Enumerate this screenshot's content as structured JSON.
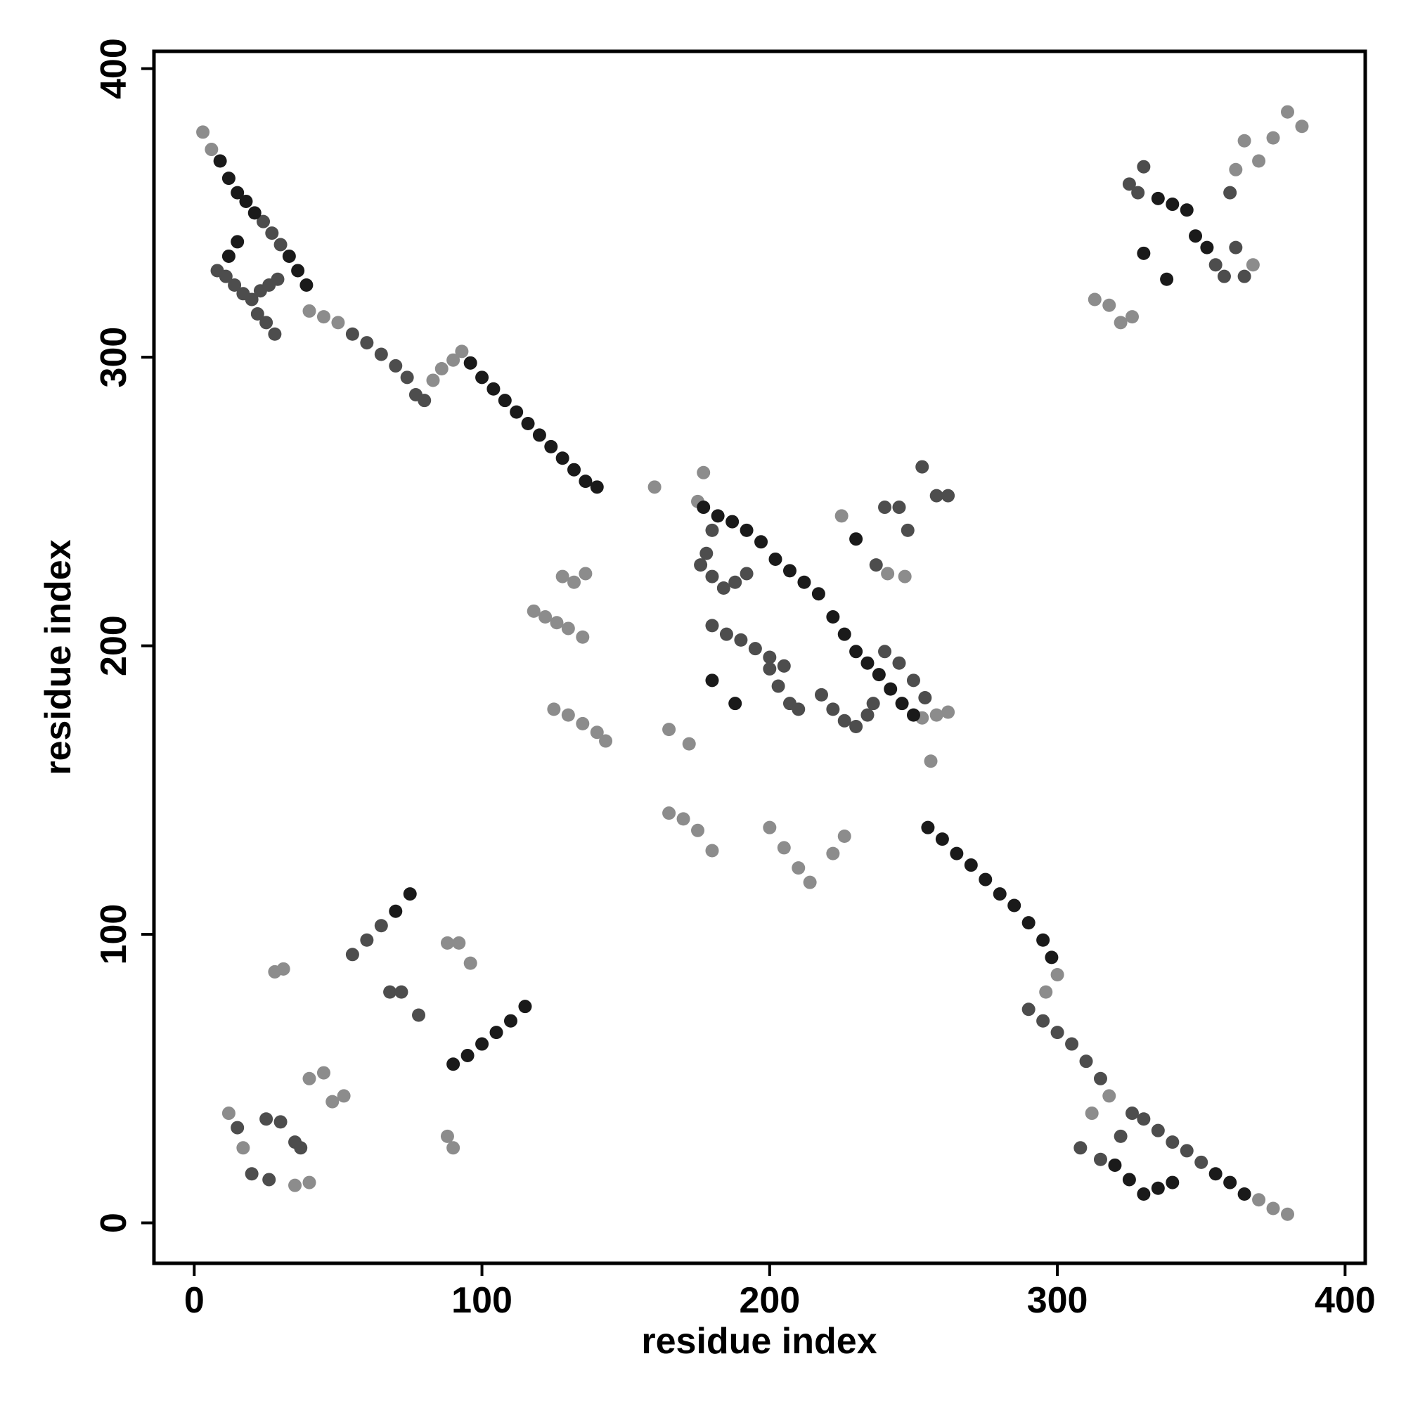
{
  "chart_data": {
    "type": "scatter",
    "x_label": "residue index",
    "y_label": "residue index",
    "xlim": [
      -14,
      407
    ],
    "ylim": [
      -14,
      406
    ],
    "xticks": [
      0,
      100,
      200,
      300,
      400
    ],
    "yticks": [
      0,
      100,
      200,
      300,
      400
    ],
    "series": [
      {
        "color": "#8c8c8c",
        "x": [
          160,
          177,
          175,
          128,
          132,
          136,
          118,
          122,
          126,
          130,
          135,
          125,
          130,
          135,
          140,
          143,
          165,
          172,
          165,
          170,
          175,
          180,
          200,
          205,
          210,
          214,
          222,
          226,
          253,
          258,
          262,
          256,
          225,
          241,
          247,
          28,
          31,
          40,
          45,
          48,
          52,
          88,
          92,
          96,
          88,
          90,
          12,
          17,
          35,
          40,
          313,
          318,
          322,
          326,
          365,
          370,
          375,
          380,
          385,
          362,
          368,
          3,
          6,
          40,
          45,
          50,
          83,
          86,
          90,
          93,
          296,
          300,
          312,
          318,
          370,
          375,
          380
        ],
        "values": [
          255,
          260,
          250,
          224,
          222,
          225,
          212,
          210,
          208,
          206,
          203,
          178,
          176,
          173,
          170,
          167,
          171,
          166,
          142,
          140,
          136,
          129,
          137,
          130,
          123,
          118,
          128,
          134,
          175,
          176,
          177,
          160,
          245,
          225,
          224,
          87,
          88,
          50,
          52,
          42,
          44,
          97,
          97,
          90,
          30,
          26,
          38,
          26,
          13,
          14,
          320,
          318,
          312,
          314,
          375,
          368,
          376,
          385,
          380,
          365,
          332,
          378,
          372,
          316,
          314,
          312,
          292,
          296,
          299,
          302,
          80,
          86,
          38,
          44,
          8,
          5,
          3
        ]
      },
      {
        "color": "#4d4d4d",
        "x": [
          8,
          11,
          14,
          17,
          20,
          23,
          26,
          29,
          25,
          28,
          22,
          180,
          178,
          176,
          180,
          184,
          188,
          192,
          180,
          185,
          190,
          195,
          200,
          205,
          200,
          203,
          207,
          210,
          218,
          222,
          226,
          230,
          234,
          236,
          240,
          245,
          250,
          254,
          237,
          240,
          245,
          248,
          253,
          258,
          262,
          15,
          25,
          30,
          35,
          37,
          20,
          26,
          55,
          60,
          65,
          68,
          72,
          78,
          325,
          330,
          328,
          355,
          358,
          362,
          365,
          360,
          308,
          315,
          322,
          326,
          330,
          335,
          340,
          345,
          350,
          290,
          295,
          300,
          305,
          24,
          27,
          30,
          55,
          60,
          65,
          70,
          74,
          77,
          80,
          310,
          315
        ],
        "values": [
          330,
          328,
          325,
          322,
          320,
          323,
          325,
          327,
          312,
          308,
          315,
          240,
          232,
          228,
          224,
          220,
          222,
          225,
          207,
          204,
          202,
          199,
          196,
          193,
          192,
          186,
          180,
          178,
          183,
          178,
          174,
          172,
          176,
          180,
          198,
          194,
          188,
          182,
          228,
          248,
          248,
          240,
          262,
          252,
          252,
          33,
          36,
          35,
          28,
          26,
          17,
          15,
          93,
          98,
          103,
          80,
          80,
          72,
          360,
          366,
          357,
          332,
          328,
          338,
          328,
          357,
          26,
          22,
          30,
          38,
          36,
          32,
          28,
          25,
          21,
          74,
          70,
          66,
          62,
          347,
          343,
          339,
          308,
          305,
          301,
          297,
          293,
          287,
          285,
          56,
          50
        ]
      },
      {
        "color": "#1a1a1a",
        "x": [
          9,
          12,
          15,
          18,
          21,
          33,
          36,
          39,
          12,
          15,
          96,
          100,
          104,
          108,
          112,
          116,
          120,
          124,
          128,
          132,
          136,
          140,
          177,
          182,
          187,
          192,
          197,
          202,
          207,
          212,
          217,
          222,
          226,
          230,
          234,
          238,
          242,
          246,
          250,
          180,
          188,
          230,
          70,
          75,
          90,
          95,
          100,
          105,
          110,
          115,
          255,
          260,
          265,
          270,
          275,
          280,
          285,
          290,
          295,
          298,
          320,
          325,
          330,
          335,
          340,
          355,
          360,
          365,
          335,
          340,
          345,
          348,
          352,
          330,
          338
        ],
        "values": [
          368,
          362,
          357,
          354,
          350,
          335,
          330,
          325,
          335,
          340,
          298,
          293,
          289,
          285,
          281,
          277,
          273,
          269,
          265,
          261,
          257,
          255,
          248,
          245,
          243,
          240,
          236,
          230,
          226,
          222,
          218,
          210,
          204,
          198,
          194,
          190,
          185,
          180,
          176,
          188,
          180,
          237,
          108,
          114,
          55,
          58,
          62,
          66,
          70,
          75,
          137,
          133,
          128,
          124,
          119,
          114,
          110,
          104,
          98,
          92,
          20,
          15,
          10,
          12,
          14,
          17,
          14,
          10,
          355,
          353,
          351,
          342,
          338,
          336,
          327
        ]
      }
    ]
  }
}
